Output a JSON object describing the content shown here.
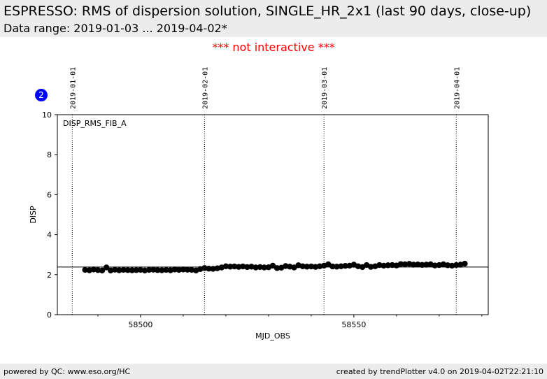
{
  "header": {
    "title": "ESPRESSO: RMS of dispersion solution, SINGLE_HR_2x1 (last 90 days, close-up)",
    "subtitle": "Data range: 2019-01-03 ... 2019-04-02*"
  },
  "notice": "*** not interactive ***",
  "badge": "2",
  "footer": {
    "left": "powered by QC: www.eso.org/HC",
    "right": "created by trendPlotter v4.0 on 2019-04-02T22:21:10"
  },
  "chart_data": {
    "type": "scatter",
    "xlabel": "MJD_OBS",
    "ylabel": "DISP",
    "xlim": [
      58480.5,
      58581.5
    ],
    "ylim": [
      0,
      10
    ],
    "xticks": [
      58500,
      58550
    ],
    "yticks": [
      0,
      2,
      4,
      6,
      8,
      10
    ],
    "date_markers": [
      {
        "label": "2019-01-01",
        "x": 58484
      },
      {
        "label": "2019-02-01",
        "x": 58515
      },
      {
        "label": "2019-03-01",
        "x": 58543
      },
      {
        "label": "2019-04-01",
        "x": 58574
      }
    ],
    "reference_line": 2.38,
    "annotation": "DISP_RMS_FIB_A",
    "series": [
      {
        "marker_color": "#000000",
        "x": [
          58487,
          58488,
          58489,
          58490,
          58491,
          58492,
          58493,
          58494,
          58495,
          58496,
          58497,
          58498,
          58499,
          58500,
          58501,
          58502,
          58503,
          58504,
          58505,
          58506,
          58507,
          58508,
          58509,
          58510,
          58511,
          58512,
          58513,
          58514,
          58515,
          58516,
          58517,
          58518,
          58519,
          58520,
          58521,
          58522,
          58523,
          58524,
          58525,
          58526,
          58527,
          58528,
          58529,
          58530,
          58531,
          58532,
          58533,
          58534,
          58535,
          58536,
          58537,
          58538,
          58539,
          58540,
          58541,
          58542,
          58543,
          58544,
          58545,
          58546,
          58547,
          58548,
          58549,
          58550,
          58551,
          58552,
          58553,
          58554,
          58555,
          58556,
          58557,
          58558,
          58559,
          58560,
          58561,
          58562,
          58563,
          58564,
          58565,
          58566,
          58567,
          58568,
          58569,
          58570,
          58571,
          58572,
          58573,
          58574,
          58575,
          58576
        ],
        "y": [
          2.24,
          2.22,
          2.26,
          2.23,
          2.21,
          2.36,
          2.21,
          2.25,
          2.22,
          2.24,
          2.23,
          2.22,
          2.23,
          2.24,
          2.21,
          2.24,
          2.25,
          2.23,
          2.22,
          2.24,
          2.22,
          2.26,
          2.24,
          2.26,
          2.25,
          2.24,
          2.21,
          2.28,
          2.33,
          2.3,
          2.29,
          2.32,
          2.36,
          2.42,
          2.4,
          2.41,
          2.39,
          2.41,
          2.38,
          2.4,
          2.36,
          2.38,
          2.36,
          2.37,
          2.45,
          2.33,
          2.35,
          2.43,
          2.4,
          2.36,
          2.47,
          2.42,
          2.4,
          2.41,
          2.39,
          2.42,
          2.45,
          2.52,
          2.41,
          2.4,
          2.42,
          2.44,
          2.45,
          2.5,
          2.42,
          2.38,
          2.48,
          2.39,
          2.42,
          2.48,
          2.45,
          2.47,
          2.48,
          2.46,
          2.53,
          2.52,
          2.54,
          2.5,
          2.51,
          2.49,
          2.5,
          2.52,
          2.46,
          2.48,
          2.52,
          2.47,
          2.45,
          2.48,
          2.5,
          2.55
        ]
      }
    ]
  }
}
